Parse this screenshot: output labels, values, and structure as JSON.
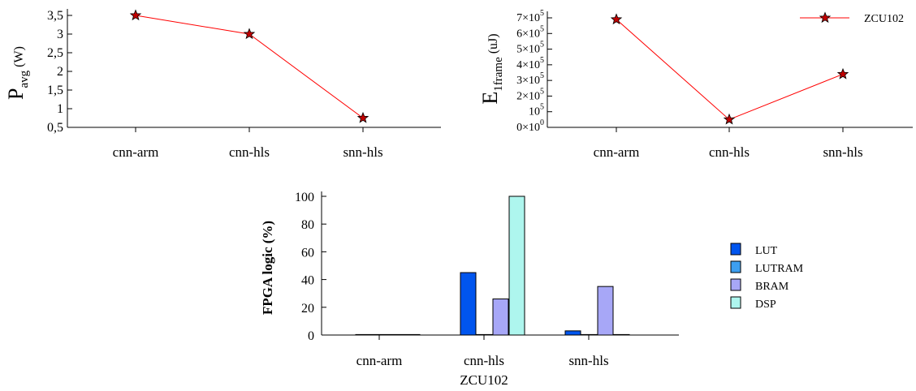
{
  "chart_data": [
    {
      "type": "line",
      "categories": [
        "cnn-arm",
        "cnn-hls",
        "snn-hls"
      ],
      "series": [
        {
          "values": [
            3.5,
            3.0,
            0.75
          ],
          "color": "#ff0000",
          "marker": "star"
        }
      ],
      "ylabel": {
        "main": "P",
        "sub": "avg",
        "unit": " (W)"
      },
      "ylim": [
        0.5,
        3.5
      ],
      "yticks": [
        0.5,
        1,
        1.5,
        2,
        2.5,
        3,
        3.5
      ],
      "ytick_labels": [
        "0,5",
        "1",
        "1,5",
        "2",
        "2,5",
        "3",
        "3,5"
      ],
      "grid": false
    },
    {
      "type": "line",
      "categories": [
        "cnn-arm",
        "cnn-hls",
        "snn-hls"
      ],
      "series": [
        {
          "name": "ZCU102",
          "values": [
            690000,
            50000,
            340000
          ],
          "color": "#ff0000",
          "marker": "star"
        }
      ],
      "ylabel": {
        "main": "E",
        "sub": "1frame",
        "unit": " (uJ)"
      },
      "ylim": [
        0,
        700000
      ],
      "yticks": [
        0,
        100000,
        200000,
        300000,
        400000,
        500000,
        600000,
        700000
      ],
      "ytick_labels": [
        {
          "mant": "0×10",
          "exp": "0"
        },
        {
          "mant": "10",
          "exp": "5"
        },
        {
          "mant": "2×10",
          "exp": "5"
        },
        {
          "mant": "3×10",
          "exp": "5"
        },
        {
          "mant": "4×10",
          "exp": "5"
        },
        {
          "mant": "5×10",
          "exp": "5"
        },
        {
          "mant": "6×10",
          "exp": "5"
        },
        {
          "mant": "7×10",
          "exp": "5"
        }
      ],
      "legend_position": "top-right",
      "grid": false
    },
    {
      "type": "bar",
      "categories": [
        "cnn-arm",
        "cnn-hls",
        "snn-hls"
      ],
      "xlabel": "ZCU102",
      "ylabel": "FPGA logic (%)",
      "ylim": [
        0,
        100
      ],
      "yticks": [
        0,
        20,
        40,
        60,
        80,
        100
      ],
      "series": [
        {
          "name": "LUT",
          "values": [
            0,
            45,
            3
          ],
          "color": "#0055ee"
        },
        {
          "name": "LUTRAM",
          "values": [
            0,
            0,
            0
          ],
          "color": "#3d9ff0"
        },
        {
          "name": "BRAM",
          "values": [
            0,
            26,
            35
          ],
          "color": "#a7a7f7"
        },
        {
          "name": "DSP",
          "values": [
            0,
            100,
            0
          ],
          "color": "#aef6ee"
        }
      ],
      "legend_position": "right",
      "grid": false
    }
  ]
}
